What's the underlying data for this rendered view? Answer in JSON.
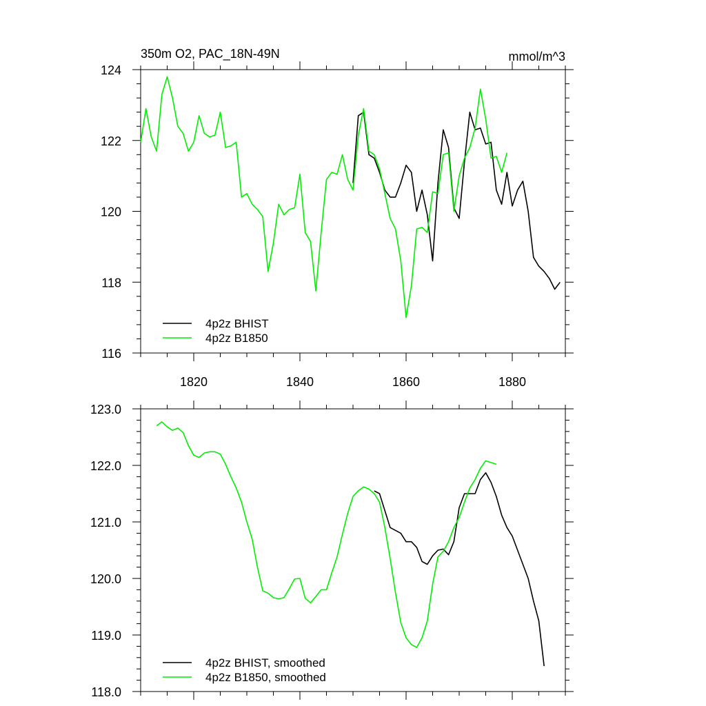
{
  "chart_data": [
    {
      "type": "line",
      "title": "350m O2, PAC_18N-49N",
      "units": "mmol/m^3",
      "xlim": [
        1810,
        1890
      ],
      "ylim": [
        116,
        124
      ],
      "xticks": [
        1820,
        1840,
        1860,
        1880
      ],
      "xtick_labels": [
        "1820",
        "1840",
        "1860",
        "1880"
      ],
      "yticks": [
        116,
        118,
        120,
        122,
        124
      ],
      "ytick_labels": [
        "116",
        "118",
        "120",
        "122",
        "124"
      ],
      "legend_position": "bottom-left",
      "series": [
        {
          "name": "4p2z BHIST",
          "color": "#000000",
          "x": [
            1850,
            1851,
            1852,
            1853,
            1854,
            1855,
            1856,
            1857,
            1858,
            1859,
            1860,
            1861,
            1862,
            1863,
            1864,
            1865,
            1866,
            1867,
            1868,
            1869,
            1870,
            1871,
            1872,
            1873,
            1874,
            1875,
            1876,
            1877,
            1878,
            1879,
            1880,
            1881,
            1882,
            1883,
            1884,
            1885,
            1886,
            1887,
            1888,
            1889
          ],
          "y": [
            120.8,
            122.7,
            122.8,
            121.6,
            121.5,
            121.1,
            120.6,
            120.4,
            120.4,
            120.8,
            121.3,
            121.1,
            120.0,
            120.6,
            119.9,
            118.6,
            120.8,
            122.3,
            121.8,
            120.1,
            119.8,
            121.4,
            122.8,
            122.3,
            122.35,
            121.9,
            121.95,
            120.6,
            120.2,
            121.1,
            120.15,
            120.6,
            120.85,
            120.0,
            118.7,
            118.45,
            118.3,
            118.1,
            117.8,
            118.0
          ]
        },
        {
          "name": "4p2z B1850",
          "color": "#00ee00",
          "x": [
            1810,
            1811,
            1812,
            1813,
            1814,
            1815,
            1816,
            1817,
            1818,
            1819,
            1820,
            1821,
            1822,
            1823,
            1824,
            1825,
            1826,
            1827,
            1828,
            1829,
            1830,
            1831,
            1832,
            1833,
            1834,
            1835,
            1836,
            1837,
            1838,
            1839,
            1840,
            1841,
            1842,
            1843,
            1844,
            1845,
            1846,
            1847,
            1848,
            1849,
            1850,
            1851,
            1852,
            1853,
            1854,
            1855,
            1856,
            1857,
            1858,
            1859,
            1860,
            1861,
            1862,
            1863,
            1864,
            1865,
            1866,
            1867,
            1868,
            1869,
            1870,
            1871,
            1872,
            1873,
            1874,
            1875,
            1876,
            1877,
            1878,
            1879
          ],
          "y": [
            121.95,
            122.9,
            122.1,
            121.7,
            123.3,
            123.8,
            123.2,
            122.4,
            122.2,
            121.7,
            121.95,
            122.7,
            122.2,
            122.1,
            122.15,
            122.8,
            121.8,
            121.85,
            121.95,
            120.4,
            120.5,
            120.2,
            120.05,
            119.85,
            118.3,
            119.1,
            120.2,
            119.9,
            120.05,
            120.1,
            121.05,
            119.4,
            119.15,
            117.75,
            119.4,
            120.9,
            121.1,
            121.05,
            121.6,
            120.9,
            120.6,
            122.15,
            122.9,
            121.7,
            121.6,
            121.2,
            120.5,
            119.8,
            119.5,
            118.6,
            117.0,
            117.9,
            119.5,
            119.55,
            119.4,
            120.55,
            120.5,
            121.6,
            121.65,
            120.0,
            121.0,
            121.5,
            121.8,
            122.35,
            123.45,
            122.6,
            121.5,
            121.55,
            121.1,
            121.65
          ]
        }
      ]
    },
    {
      "type": "line",
      "title": "",
      "xlim": [
        1810,
        1890
      ],
      "ylim": [
        118.0,
        123.0
      ],
      "xticks": [
        1820,
        1840,
        1860,
        1880
      ],
      "yticks": [
        118.0,
        119.0,
        120.0,
        121.0,
        122.0,
        123.0
      ],
      "ytick_labels": [
        "118.0",
        "119.0",
        "120.0",
        "121.0",
        "122.0",
        "123.0"
      ],
      "legend_position": "bottom-left",
      "series": [
        {
          "name": "4p2z BHIST, smoothed",
          "color": "#000000",
          "x": [
            1854,
            1855,
            1856,
            1857,
            1858,
            1859,
            1860,
            1861,
            1862,
            1863,
            1864,
            1865,
            1866,
            1867,
            1868,
            1869,
            1870,
            1871,
            1872,
            1873,
            1874,
            1875,
            1876,
            1877,
            1878,
            1879,
            1880,
            1881,
            1882,
            1883,
            1884,
            1885,
            1886
          ],
          "y": [
            121.55,
            121.5,
            121.2,
            120.9,
            120.85,
            120.8,
            120.65,
            120.65,
            120.55,
            120.3,
            120.25,
            120.4,
            120.5,
            120.52,
            120.42,
            120.65,
            121.25,
            121.5,
            121.5,
            121.5,
            121.75,
            121.87,
            121.7,
            121.45,
            121.12,
            120.9,
            120.75,
            120.5,
            120.25,
            120.0,
            119.6,
            119.25,
            118.45
          ]
        },
        {
          "name": "4p2z B1850, smoothed",
          "color": "#00ee00",
          "x": [
            1813,
            1814,
            1815,
            1816,
            1817,
            1818,
            1819,
            1820,
            1821,
            1822,
            1823,
            1824,
            1825,
            1826,
            1827,
            1828,
            1829,
            1830,
            1831,
            1832,
            1833,
            1834,
            1835,
            1836,
            1837,
            1838,
            1839,
            1840,
            1841,
            1842,
            1843,
            1844,
            1845,
            1846,
            1847,
            1848,
            1849,
            1850,
            1851,
            1852,
            1853,
            1854,
            1855,
            1856,
            1857,
            1858,
            1859,
            1860,
            1861,
            1862,
            1863,
            1864,
            1865,
            1866,
            1867,
            1868,
            1869,
            1870,
            1871,
            1872,
            1873,
            1874,
            1875,
            1876,
            1877
          ],
          "y": [
            122.7,
            122.77,
            122.68,
            122.62,
            122.66,
            122.58,
            122.35,
            122.18,
            122.14,
            122.22,
            122.24,
            122.24,
            122.2,
            122.02,
            121.8,
            121.6,
            121.35,
            121.0,
            120.7,
            120.2,
            119.78,
            119.74,
            119.66,
            119.64,
            119.66,
            119.82,
            119.99,
            120.0,
            119.65,
            119.57,
            119.68,
            119.8,
            119.8,
            120.1,
            120.38,
            120.78,
            121.15,
            121.45,
            121.55,
            121.62,
            121.58,
            121.5,
            121.35,
            120.9,
            120.35,
            119.75,
            119.22,
            118.95,
            118.83,
            118.78,
            118.95,
            119.25,
            119.9,
            120.38,
            120.48,
            120.65,
            120.9,
            121.08,
            121.35,
            121.6,
            121.75,
            121.95,
            122.08,
            122.05,
            122.02
          ]
        }
      ]
    }
  ]
}
